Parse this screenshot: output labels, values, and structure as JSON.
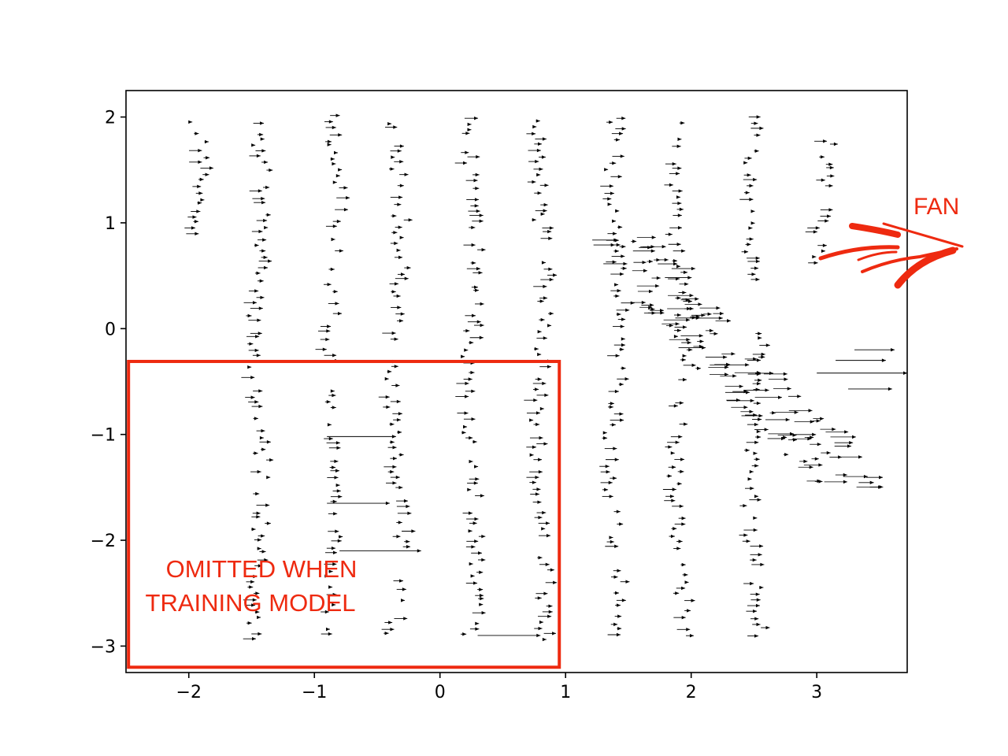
{
  "chart_data": {
    "type": "scatter",
    "title": "",
    "xlabel": "",
    "ylabel": "",
    "xlim": [
      -2.5,
      3.72
    ],
    "ylim": [
      -3.25,
      2.25
    ],
    "grid": false,
    "x_ticks": [
      -2,
      -1,
      0,
      1,
      2,
      3
    ],
    "y_ticks": [
      2,
      1,
      0,
      -1,
      -2,
      -3
    ],
    "x_tick_labels": [
      "−2",
      "−1",
      "0",
      "1",
      "2",
      "3"
    ],
    "y_tick_labels": [
      "2",
      "1",
      "0",
      "−1",
      "−2",
      "−3"
    ],
    "marker": "horizontal arrow",
    "arrow_color": "#000000",
    "columns": [
      {
        "x": -1.95,
        "y_top": 2.0,
        "y_bottom": 0.8
      },
      {
        "x": -1.45,
        "y_top": 1.95,
        "y_bottom": -3.0
      },
      {
        "x": -0.85,
        "y_top": 2.0,
        "y_bottom": -2.95
      },
      {
        "x": -0.35,
        "y_top": 1.95,
        "y_bottom": -3.0
      },
      {
        "x": 0.25,
        "y_top": 2.0,
        "y_bottom": -2.95
      },
      {
        "x": 0.8,
        "y_top": 1.95,
        "y_bottom": -3.0
      },
      {
        "x": 1.4,
        "y_top": 2.0,
        "y_bottom": -2.95
      },
      {
        "x": 1.9,
        "y_top": 1.95,
        "y_bottom": -3.0
      },
      {
        "x": 2.5,
        "y_top": 2.0,
        "y_bottom": -2.95
      },
      {
        "x": 3.05,
        "y_top": 1.95,
        "y_bottom": 0.6
      }
    ],
    "long_arrows": [
      {
        "x_start": -0.9,
        "x_end": -0.35,
        "y": -1.02
      },
      {
        "x_start": -0.9,
        "x_end": -0.4,
        "y": -1.65
      },
      {
        "x_start": -0.8,
        "x_end": -0.15,
        "y": -2.1
      },
      {
        "x_start": 0.3,
        "x_end": 0.8,
        "y": -2.9
      },
      {
        "x_start": 3.3,
        "x_end": 3.62,
        "y": -0.2
      },
      {
        "x_start": 3.15,
        "x_end": 3.55,
        "y": -0.3
      },
      {
        "x_start": 3.0,
        "x_end": 3.72,
        "y": -0.42
      },
      {
        "x_start": 3.25,
        "x_end": 3.6,
        "y": -0.57
      }
    ],
    "annotation_color": "#ee2a10",
    "annotations": {
      "box_label_line1": "OMITTED WHEN",
      "box_label_line2": "TRAINING MODEL",
      "fan_label": "FAN"
    },
    "omitted_region": {
      "x_min": -2.48,
      "x_max": 0.95,
      "y_min": -3.2,
      "y_max": -0.31
    }
  }
}
